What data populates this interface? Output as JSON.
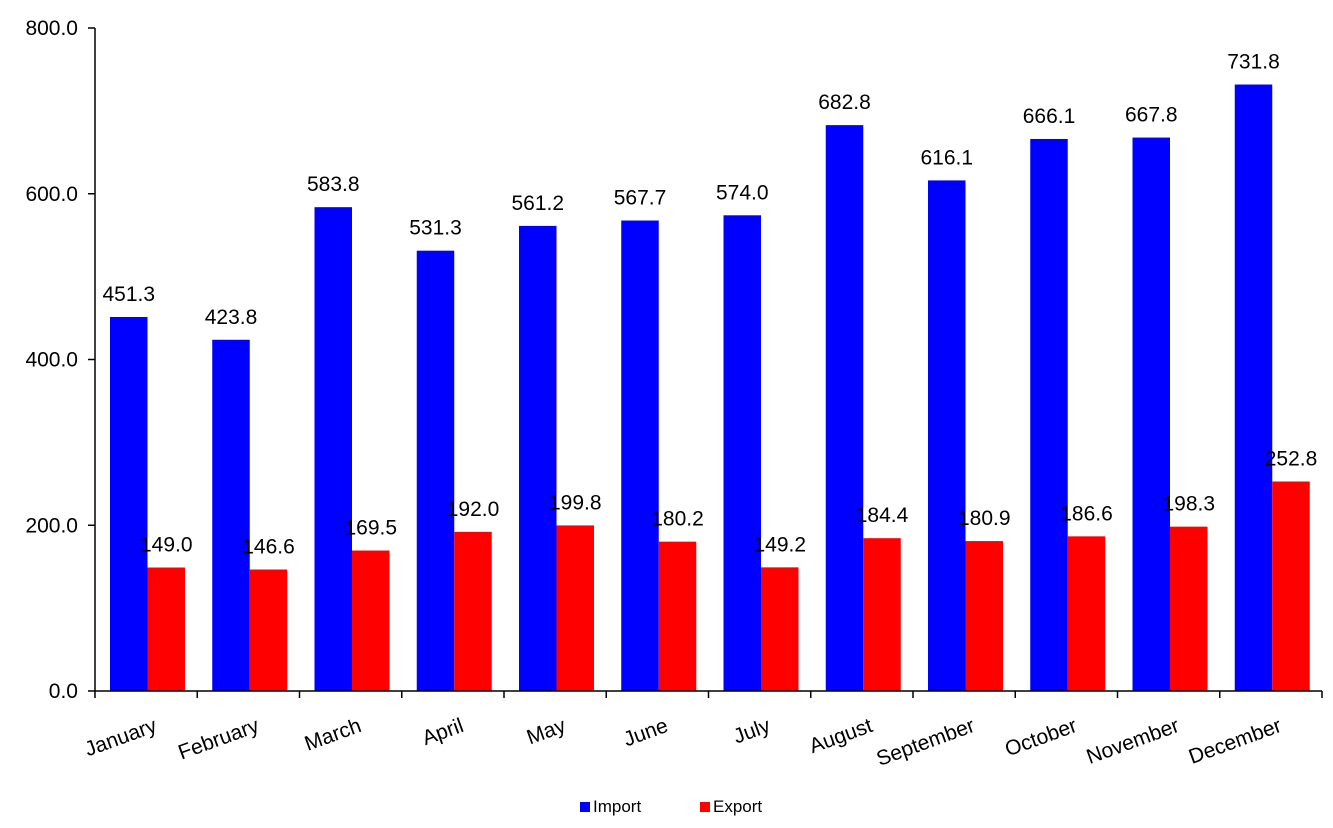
{
  "chart_data": {
    "type": "bar",
    "categories": [
      "January",
      "February",
      "March",
      "April",
      "May",
      "June",
      "July",
      "August",
      "September",
      "October",
      "November",
      "December"
    ],
    "series": [
      {
        "name": "Import",
        "color": "#0000FF",
        "values": [
          451.3,
          423.8,
          583.8,
          531.3,
          561.2,
          567.7,
          574.0,
          682.8,
          616.1,
          666.1,
          667.8,
          731.8
        ],
        "labels": [
          "451.3",
          "423.8",
          "583.8",
          "531.3",
          "561.2",
          "567.7",
          "574.0",
          "682.8",
          "616.1",
          "666.1",
          "667.8",
          "731.8"
        ]
      },
      {
        "name": "Export",
        "color": "#FF0000",
        "values": [
          149.0,
          146.6,
          169.5,
          192.0,
          199.8,
          180.2,
          149.2,
          184.4,
          180.9,
          186.6,
          198.3,
          252.8
        ],
        "labels": [
          "149.0",
          "146.6",
          "169.5",
          "192.0",
          "199.8",
          "180.2",
          "149.2",
          "184.4",
          "180.9",
          "186.6",
          "198.3",
          "252.8"
        ]
      }
    ],
    "ylim": [
      0,
      800
    ],
    "yticks": [
      0,
      200,
      400,
      600,
      800
    ],
    "ytick_labels": [
      "0.0",
      "200.0",
      "400.0",
      "600.0",
      "800.0"
    ],
    "grid": false,
    "legend_position": "bottom-center"
  }
}
